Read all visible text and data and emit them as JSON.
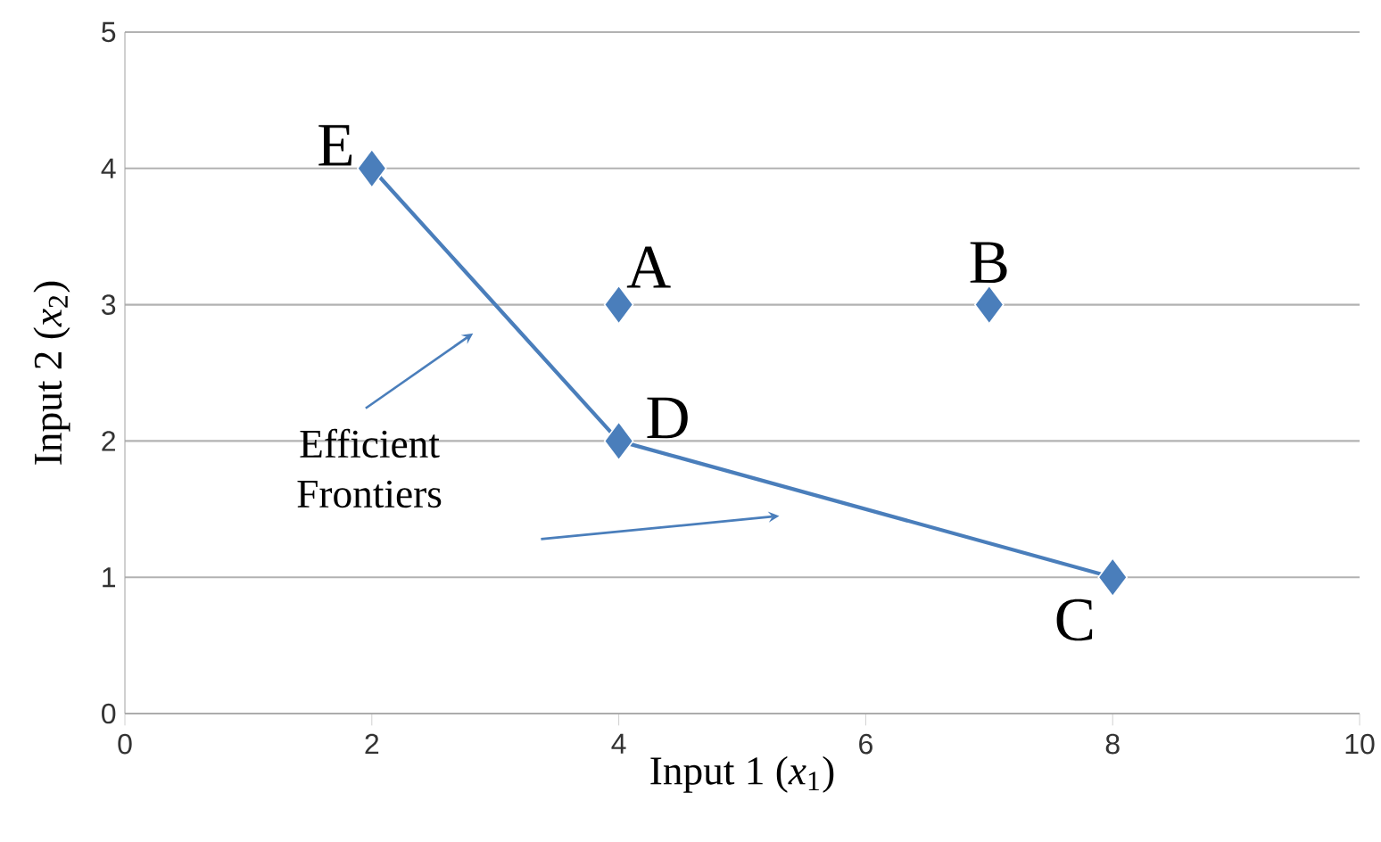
{
  "chart_data": {
    "type": "scatter",
    "xlabel": "Input 1 (*x*$_{1}$)",
    "ylabel": "Input 2 (*x*$_{2}$)",
    "xlim": [
      0,
      10
    ],
    "xticks": [
      0,
      2,
      4,
      6,
      8,
      10
    ],
    "ylim": [
      0,
      5
    ],
    "yticks": [
      0,
      1,
      2,
      3,
      4,
      5
    ],
    "grid": "y",
    "series": [
      {
        "type": "line",
        "color": "#4a7ebb",
        "x": [
          2,
          4,
          8
        ],
        "values": [
          4,
          2,
          1
        ],
        "marker": "none",
        "line_style": "solid"
      },
      {
        "color": "#4a7ebb",
        "x": [
          4,
          7,
          8,
          4,
          2
        ],
        "values": [
          3,
          3,
          1,
          2,
          4
        ],
        "marker": "diamond"
      }
    ],
    "annotations": [
      {
        "text": "A",
        "x": 4,
        "y": 3
      },
      {
        "text": "B",
        "x": 7,
        "y": 3
      },
      {
        "text": "C",
        "x": 8,
        "y": 1
      },
      {
        "text": "D",
        "x": 4,
        "y": 2
      },
      {
        "text": "E",
        "x": 2,
        "y": 4
      },
      "Efficient Frontiers"
    ]
  }
}
